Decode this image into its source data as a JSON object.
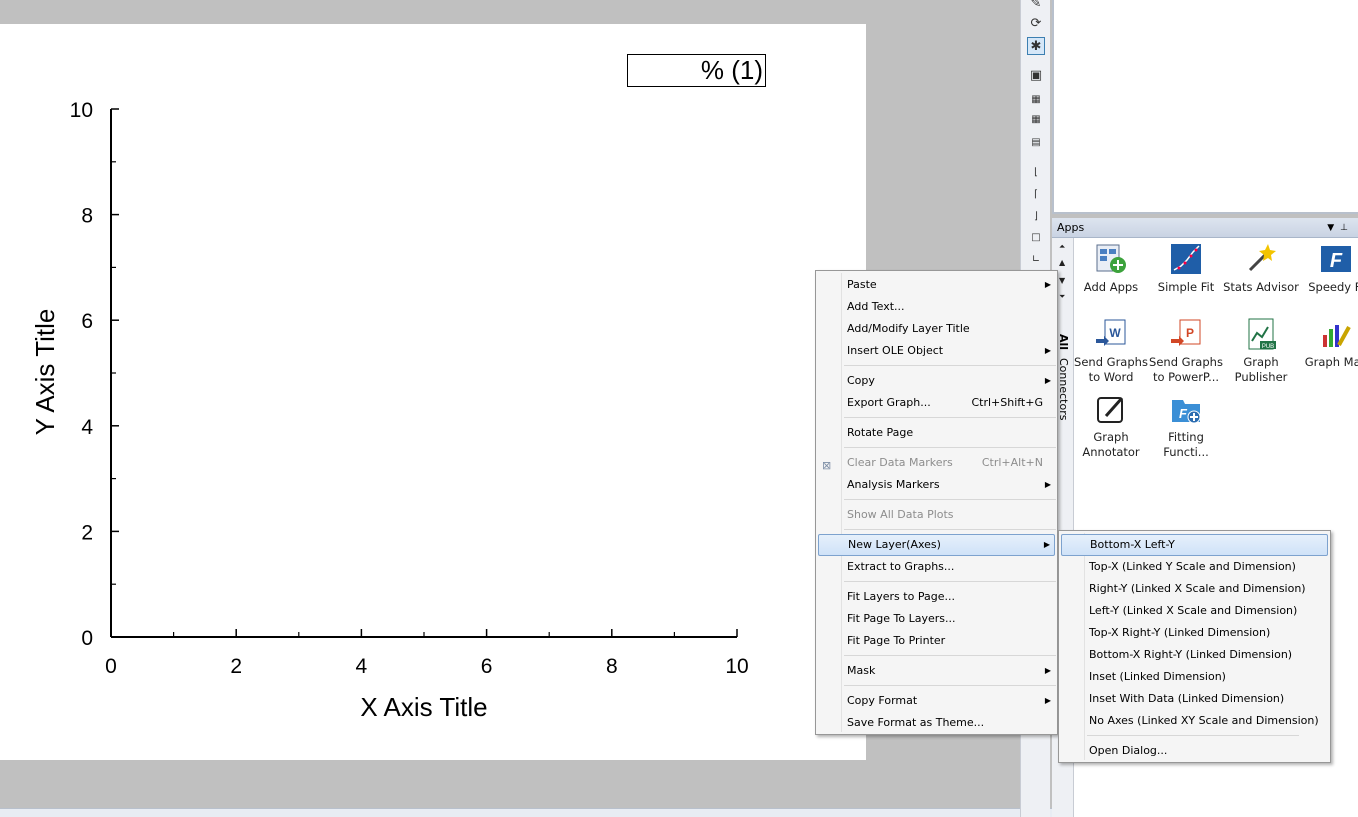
{
  "graph": {
    "legend_text": "% (1)",
    "x_axis_title": "X Axis Title",
    "y_axis_title": "Y Axis Title"
  },
  "chart_data": {
    "type": "scatter",
    "series": [],
    "xlabel": "X Axis Title",
    "ylabel": "Y Axis Title",
    "xlim": [
      0,
      10
    ],
    "ylim": [
      0,
      10
    ],
    "x_ticks": [
      "0",
      "2",
      "4",
      "6",
      "8",
      "10"
    ],
    "y_ticks": [
      "0",
      "2",
      "4",
      "6",
      "8",
      "10"
    ],
    "grid": false,
    "legend": "% (1)",
    "legend_placement": "top-right"
  },
  "apps_panel": {
    "title": "Apps",
    "side_tabs": [
      "All",
      "Connectors"
    ],
    "apps": [
      {
        "label1": "Add Apps",
        "label2": "",
        "icon": "add-apps-icon"
      },
      {
        "label1": "Simple Fit",
        "label2": "",
        "icon": "simple-fit-icon"
      },
      {
        "label1": "Stats Advisor",
        "label2": "",
        "icon": "stats-advisor-icon"
      },
      {
        "label1": "Speedy Fi",
        "label2": "",
        "icon": "speedy-fit-icon"
      },
      {
        "label1": "Send Graphs",
        "label2": "to Word",
        "icon": "word-icon"
      },
      {
        "label1": "Send Graphs",
        "label2": "to PowerP...",
        "icon": "powerpoint-icon"
      },
      {
        "label1": "Graph",
        "label2": "Publisher",
        "icon": "graph-publisher-icon"
      },
      {
        "label1": "Graph Mak",
        "label2": "",
        "icon": "graph-maker-icon"
      },
      {
        "label1": "Graph",
        "label2": "Annotator",
        "icon": "graph-annotator-icon"
      },
      {
        "label1": "Fitting",
        "label2": "Functi...",
        "icon": "fitting-function-icon"
      }
    ]
  },
  "context_menu": {
    "items": [
      {
        "label": "Paste",
        "shortcut": "",
        "submenu": true,
        "disabled": false
      },
      {
        "label": "Add Text...",
        "shortcut": "",
        "submenu": false,
        "disabled": false
      },
      {
        "label": "Add/Modify Layer Title",
        "shortcut": "",
        "submenu": false,
        "disabled": false
      },
      {
        "label": "Insert OLE Object",
        "shortcut": "",
        "submenu": true,
        "disabled": false
      },
      {
        "label": "Copy",
        "shortcut": "",
        "submenu": true,
        "disabled": false
      },
      {
        "label": "Export Graph...",
        "shortcut": "Ctrl+Shift+G",
        "submenu": false,
        "disabled": false
      },
      {
        "label": "Rotate Page",
        "shortcut": "",
        "submenu": false,
        "disabled": false
      },
      {
        "label": "Clear Data Markers",
        "shortcut": "Ctrl+Alt+N",
        "submenu": false,
        "disabled": true
      },
      {
        "label": "Analysis Markers",
        "shortcut": "",
        "submenu": true,
        "disabled": false
      },
      {
        "label": "Show All Data Plots",
        "shortcut": "",
        "submenu": false,
        "disabled": true
      },
      {
        "label": "New Layer(Axes)",
        "shortcut": "",
        "submenu": true,
        "disabled": false
      },
      {
        "label": "Extract to Graphs...",
        "shortcut": "",
        "submenu": false,
        "disabled": false
      },
      {
        "label": "Fit Layers to Page...",
        "shortcut": "",
        "submenu": false,
        "disabled": false
      },
      {
        "label": "Fit Page To Layers...",
        "shortcut": "",
        "submenu": false,
        "disabled": false
      },
      {
        "label": "Fit Page To Printer",
        "shortcut": "",
        "submenu": false,
        "disabled": false
      },
      {
        "label": "Mask",
        "shortcut": "",
        "submenu": true,
        "disabled": false
      },
      {
        "label": "Copy Format",
        "shortcut": "",
        "submenu": true,
        "disabled": false
      },
      {
        "label": "Save Format as Theme...",
        "shortcut": "",
        "submenu": false,
        "disabled": false
      }
    ]
  },
  "new_layer_submenu": {
    "items": [
      {
        "label": "Bottom-X Left-Y"
      },
      {
        "label": "Top-X (Linked Y Scale and Dimension)"
      },
      {
        "label": "Right-Y (Linked X Scale and Dimension)"
      },
      {
        "label": "Left-Y (Linked X Scale and Dimension)"
      },
      {
        "label": "Top-X Right-Y (Linked Dimension)"
      },
      {
        "label": "Bottom-X Right-Y (Linked Dimension)"
      },
      {
        "label": "Inset (Linked Dimension)"
      },
      {
        "label": "Inset With Data (Linked Dimension)"
      },
      {
        "label": "No Axes (Linked XY Scale and Dimension)"
      },
      {
        "label": "Open Dialog..."
      }
    ]
  },
  "colors": {
    "highlight_border": "#7da2ce",
    "highlight_fill": "#cfe2f8",
    "workspace_gray": "#c0c0c0"
  }
}
